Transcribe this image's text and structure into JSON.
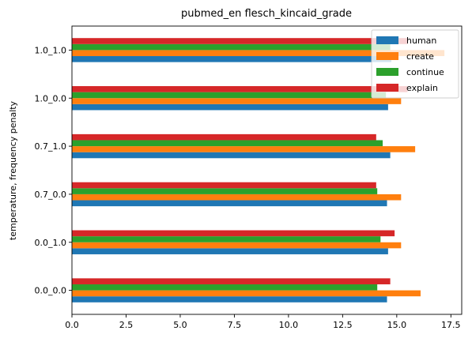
{
  "chart_data": {
    "type": "bar",
    "orientation": "horizontal",
    "title": "pubmed_en flesch_kincaid_grade",
    "xlabel": "",
    "ylabel": "temperature, frequency penalty",
    "categories": [
      "0.0_0.0",
      "0.0_1.0",
      "0.7_0.0",
      "0.7_1.0",
      "1.0_0.0",
      "1.0_1.0"
    ],
    "xlim": [
      0,
      18
    ],
    "xticks": [
      "0.0",
      "2.5",
      "5.0",
      "7.5",
      "10.0",
      "12.5",
      "15.0",
      "17.5"
    ],
    "grid": false,
    "legend_position": "top-right",
    "series": [
      {
        "name": "human",
        "color": "#1f77b4",
        "values": [
          14.55,
          14.6,
          14.55,
          14.7,
          14.6,
          14.75
        ]
      },
      {
        "name": "create",
        "color": "#ff7f0e",
        "values": [
          16.1,
          15.2,
          15.2,
          15.85,
          15.2,
          17.2
        ]
      },
      {
        "name": "continue",
        "color": "#2ca02c",
        "values": [
          14.1,
          14.25,
          14.1,
          14.35,
          14.5,
          14.7
        ]
      },
      {
        "name": "explain",
        "color": "#d62728",
        "values": [
          14.7,
          14.9,
          14.05,
          14.05,
          15.5,
          15.5
        ]
      }
    ]
  }
}
